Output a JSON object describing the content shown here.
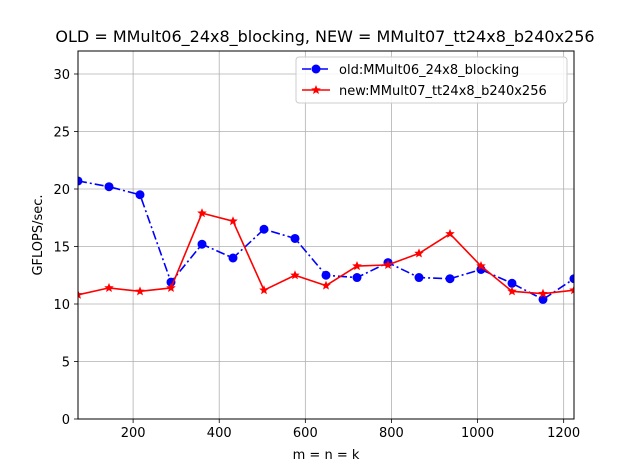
{
  "chart_data": {
    "type": "line",
    "title": "OLD = MMult06_24x8_blocking, NEW = MMult07_tt24x8_b240x256",
    "xlabel": "m = n = k",
    "ylabel": "GFLOPS/sec.",
    "xlim": [
      72,
      1224
    ],
    "ylim": [
      0,
      32
    ],
    "xticks": [
      200,
      400,
      600,
      800,
      1000,
      1200
    ],
    "yticks": [
      0,
      5,
      10,
      15,
      20,
      25,
      30
    ],
    "grid": true,
    "legend_position": "top-right",
    "x": [
      72,
      144,
      216,
      288,
      360,
      432,
      504,
      576,
      648,
      720,
      792,
      864,
      936,
      1008,
      1080,
      1152,
      1224
    ],
    "series": [
      {
        "name": "old:MMult06_24x8_blocking",
        "color": "#0000ff",
        "marker": "circle",
        "linestyle": "dashdot",
        "values": [
          20.7,
          20.2,
          19.5,
          11.9,
          15.2,
          14.0,
          16.5,
          15.7,
          12.5,
          12.3,
          13.6,
          12.3,
          12.2,
          13.0,
          11.8,
          10.4,
          12.2
        ]
      },
      {
        "name": "new:MMult07_tt24x8_b240x256",
        "color": "#ff0000",
        "marker": "star",
        "linestyle": "solid",
        "values": [
          10.8,
          11.4,
          11.1,
          11.4,
          17.9,
          17.2,
          11.2,
          12.5,
          11.6,
          13.3,
          13.4,
          14.4,
          16.1,
          13.3,
          11.1,
          10.9,
          11.2
        ]
      }
    ]
  }
}
